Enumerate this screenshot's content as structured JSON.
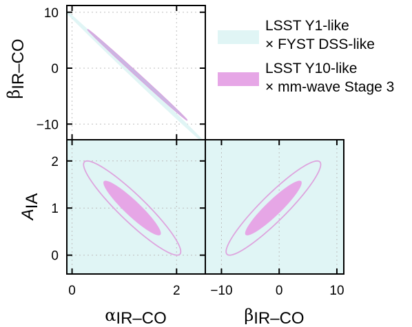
{
  "chart_data": {
    "type": "scatter",
    "subtype": "corner-plot-confidence-ellipses",
    "legend": {
      "placement": "top-right",
      "entries": [
        {
          "line1": "LSST Y1-like",
          "line2": "× FYST DSS-like",
          "color": "#e0f5f5"
        },
        {
          "line1": "LSST Y10-like",
          "line2": "× mm-wave Stage 3",
          "color": "#e6a6e6"
        }
      ]
    },
    "panels": [
      {
        "id": "beta-vs-alpha",
        "x_param": "α_IR-CO",
        "y_param": "β_IR-CO",
        "ylabel": {
          "main": "β",
          "sub": "IR–CO"
        },
        "xlim": [
          -0.1,
          2.55
        ],
        "ylim": [
          -12.8,
          11.2
        ],
        "yticks": [
          {
            "value": 10,
            "label": "10"
          },
          {
            "value": 0,
            "label": "0"
          },
          {
            "value": -10,
            "label": "−10"
          }
        ],
        "xticks": [
          0,
          2
        ],
        "grid": true,
        "contours": [
          {
            "series": "LSST Y1-like × FYST DSS-like",
            "center": [
              1.2,
              -1.5
            ],
            "sx": 1.35,
            "sy": 12.0,
            "rho": -0.9992,
            "fill": "#e0f5f5",
            "stroke": "#e0f5f5"
          },
          {
            "series": "LSST Y10-like × mm-wave Stage 3",
            "center": [
              1.25,
              -1.2
            ],
            "sx": 0.95,
            "sy": 8.1,
            "rho": -0.9988,
            "fill": "#c9b8e3",
            "stroke": "#d7a9e0"
          }
        ]
      },
      {
        "id": "AIA-vs-alpha",
        "x_param": "α_IR-CO",
        "y_param": "A_IA",
        "xlabel": {
          "main": "α",
          "sub": "IR–CO"
        },
        "ylabel": {
          "main": "A",
          "sub": "IA"
        },
        "xlim": [
          -0.1,
          2.55
        ],
        "ylim": [
          -0.4,
          2.45
        ],
        "xticks": [
          {
            "value": 0,
            "label": "0"
          },
          {
            "value": 2,
            "label": "2"
          }
        ],
        "yticks": [
          {
            "value": 2,
            "label": "2"
          },
          {
            "value": 1,
            "label": "1"
          },
          {
            "value": 0,
            "label": "0"
          }
        ],
        "grid": true,
        "background_fill": "#e0f5f5",
        "contours": [
          {
            "series": "LSST Y10-like × mm-wave Stage 3",
            "level": "outer",
            "center": [
              1.15,
              1.0
            ],
            "sx": 0.93,
            "sy": 1.0,
            "rho": -0.925,
            "fill": "none",
            "stroke": "#dea4de"
          },
          {
            "series": "LSST Y10-like × mm-wave Stage 3",
            "level": "inner",
            "center": [
              1.15,
              1.0
            ],
            "sx": 0.55,
            "sy": 0.58,
            "rho": -0.925,
            "fill": "#e6a6e6",
            "stroke": "none"
          }
        ]
      },
      {
        "id": "AIA-vs-beta",
        "x_param": "β_IR-CO",
        "y_param": "A_IA",
        "xlabel": {
          "main": "β",
          "sub": "IR–CO"
        },
        "xlim": [
          -12.8,
          11.2
        ],
        "ylim": [
          -0.4,
          2.45
        ],
        "xticks": [
          {
            "value": -10,
            "label": "−10"
          },
          {
            "value": 0,
            "label": "0"
          },
          {
            "value": 10,
            "label": "10"
          }
        ],
        "grid": true,
        "background_fill": "#e0f5f5",
        "contours": [
          {
            "series": "LSST Y10-like × mm-wave Stage 3",
            "level": "outer",
            "center": [
              -1.0,
              1.0
            ],
            "sx": 8.2,
            "sy": 1.0,
            "rho": 0.925,
            "fill": "none",
            "stroke": "#dea4de"
          },
          {
            "series": "LSST Y10-like × mm-wave Stage 3",
            "level": "inner",
            "center": [
              -1.0,
              1.0
            ],
            "sx": 4.9,
            "sy": 0.58,
            "rho": 0.925,
            "fill": "#e6a6e6",
            "stroke": "none"
          }
        ]
      }
    ]
  }
}
